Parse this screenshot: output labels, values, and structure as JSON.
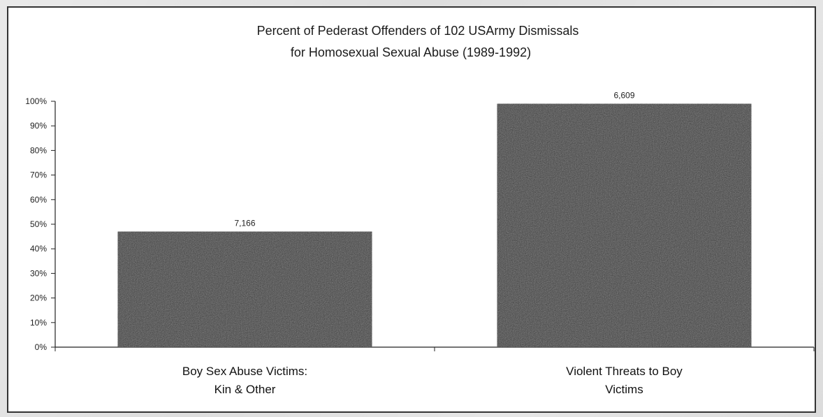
{
  "chart_data": {
    "type": "bar",
    "title": [
      "Percent of Pederast Offenders of 102 USArmy Dismissals",
      "for Homosexual Sexual Abuse (1989-1992)"
    ],
    "categories": [
      [
        "Boy Sex Abuse Victims:",
        "Kin & Other"
      ],
      [
        "Violent Threats to Boy",
        "Victims"
      ]
    ],
    "values": [
      47,
      99
    ],
    "data_labels": [
      "7,166",
      "6,609"
    ],
    "y_ticks": [
      "0%",
      "10%",
      "20%",
      "30%",
      "40%",
      "50%",
      "60%",
      "70%",
      "80%",
      "90%",
      "100%"
    ],
    "ylim": [
      0,
      100
    ],
    "bar_color": "#3a3a3a",
    "grid": false,
    "legend": "none"
  }
}
